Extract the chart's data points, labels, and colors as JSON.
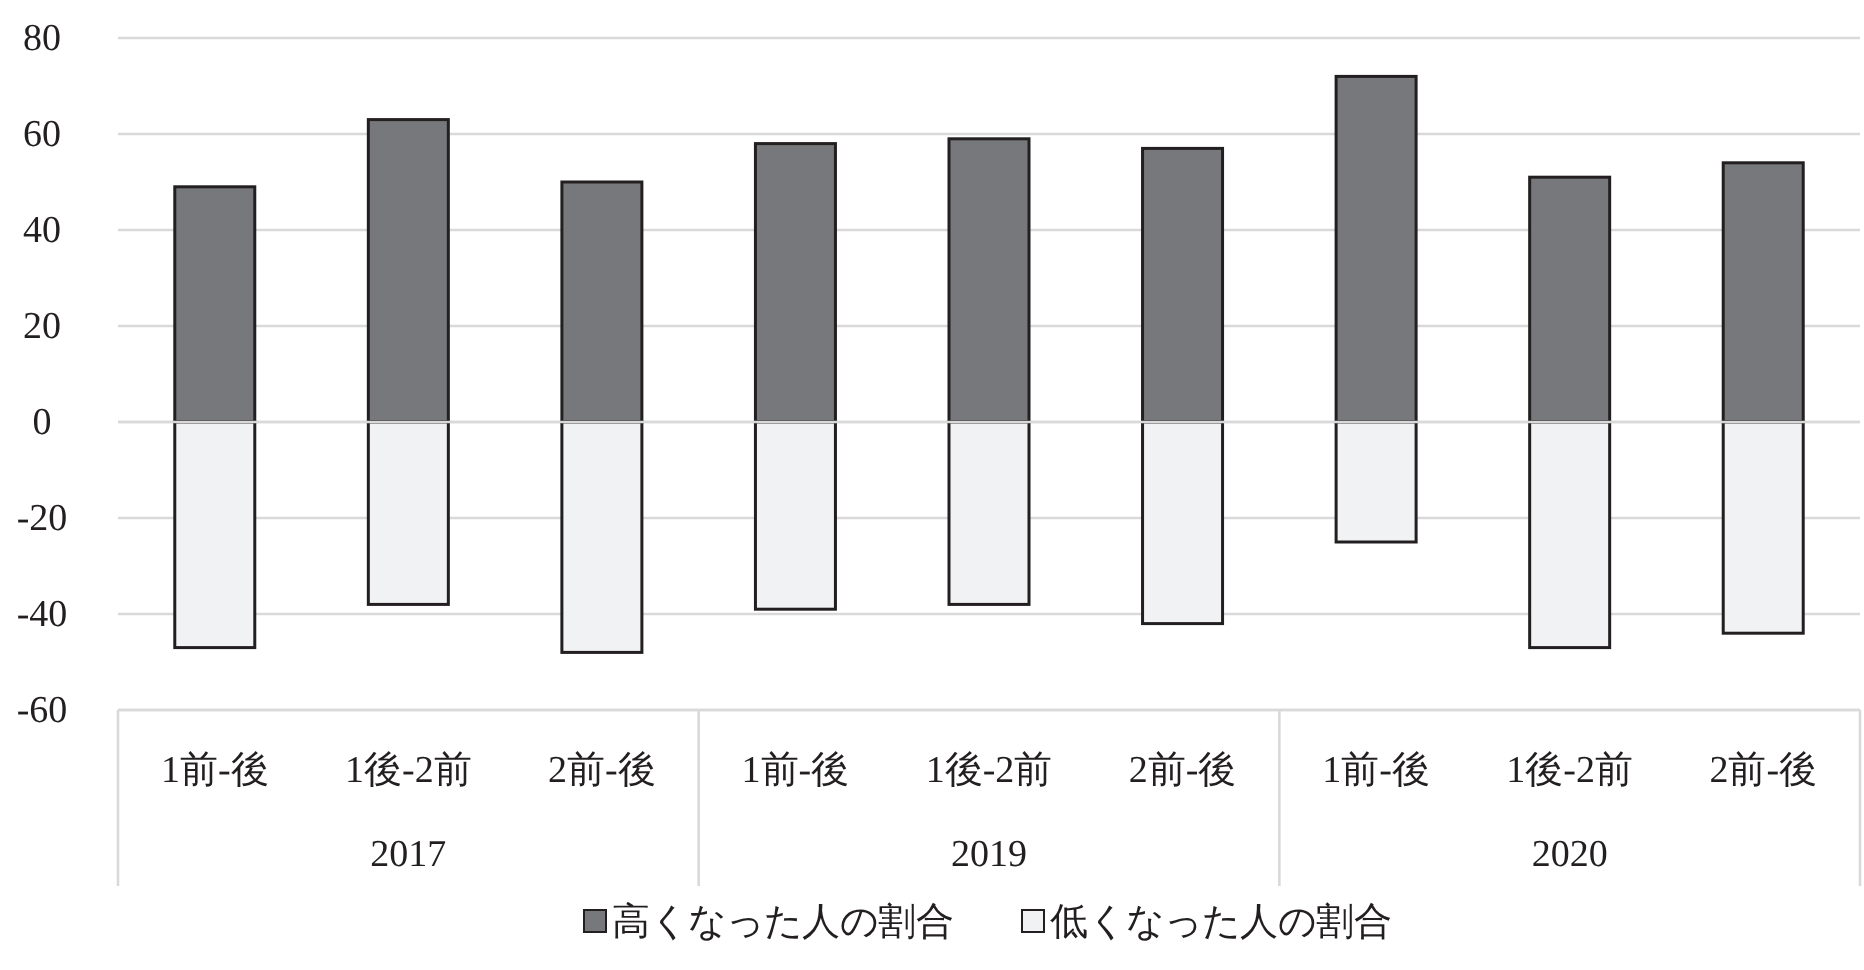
{
  "chart_data": {
    "type": "bar",
    "stacked": true,
    "categories": [
      "1前-後",
      "1後-2前",
      "2前-後",
      "1前-後",
      "1後-2前",
      "2前-後",
      "1前-後",
      "1後-2前",
      "2前-後"
    ],
    "annotations": [
      "2017",
      "2019",
      "2020"
    ],
    "series": [
      {
        "name": "高くなった人の割合",
        "color": "#77787b",
        "values": [
          49,
          63,
          50,
          58,
          59,
          57,
          72,
          51,
          54
        ]
      },
      {
        "name": "低くなった人の割合",
        "color": "#f1f2f4",
        "values": [
          -47,
          -38,
          -48,
          -39,
          -38,
          -42,
          -25,
          -47,
          -44
        ]
      }
    ],
    "ylim": [
      -60,
      80
    ],
    "yticks": [
      -60,
      -40,
      -20,
      0,
      20,
      40,
      60,
      80
    ],
    "grid": "y",
    "legend": "bottom"
  }
}
